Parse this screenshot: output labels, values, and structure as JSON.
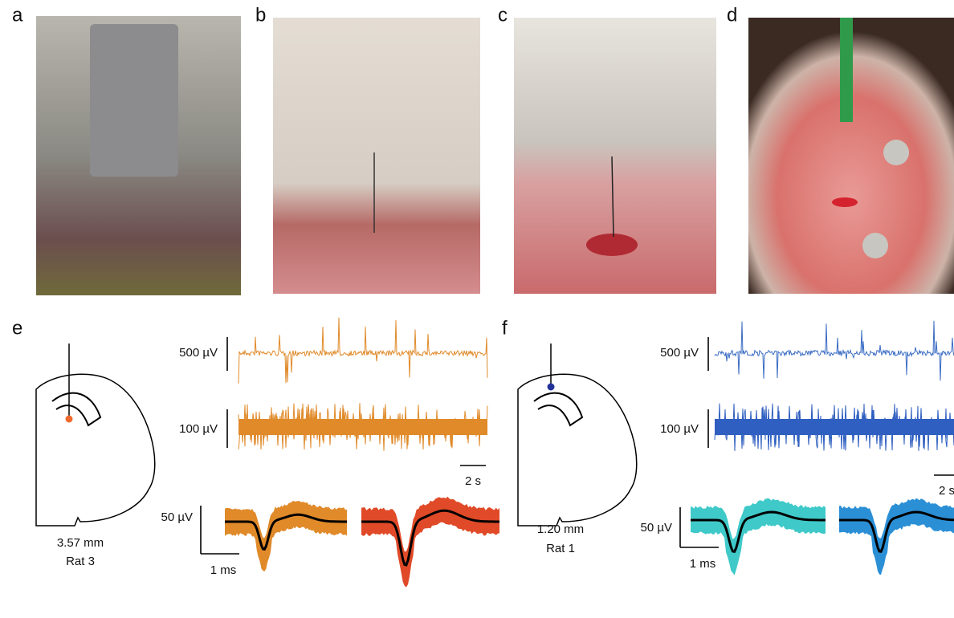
{
  "photo_panels": [
    {
      "label": "a"
    },
    {
      "label": "b"
    },
    {
      "label": "c"
    },
    {
      "label": "d"
    }
  ],
  "recording_panels": [
    {
      "label": "e",
      "depth": "3.57 mm",
      "subject": "Rat 3",
      "scale_bars": {
        "raw": "500 µV",
        "filtered": "100 µV",
        "time": "2 s",
        "waveform_amplitude": "50 µV",
        "waveform_time": "1 ms"
      }
    },
    {
      "label": "f",
      "depth": "1.20 mm",
      "subject": "Rat 1",
      "scale_bars": {
        "raw": "500 µV",
        "filtered": "100 µV",
        "time": "2 s",
        "waveform_amplitude": "50 µV",
        "waveform_time": "1 ms"
      }
    }
  ]
}
